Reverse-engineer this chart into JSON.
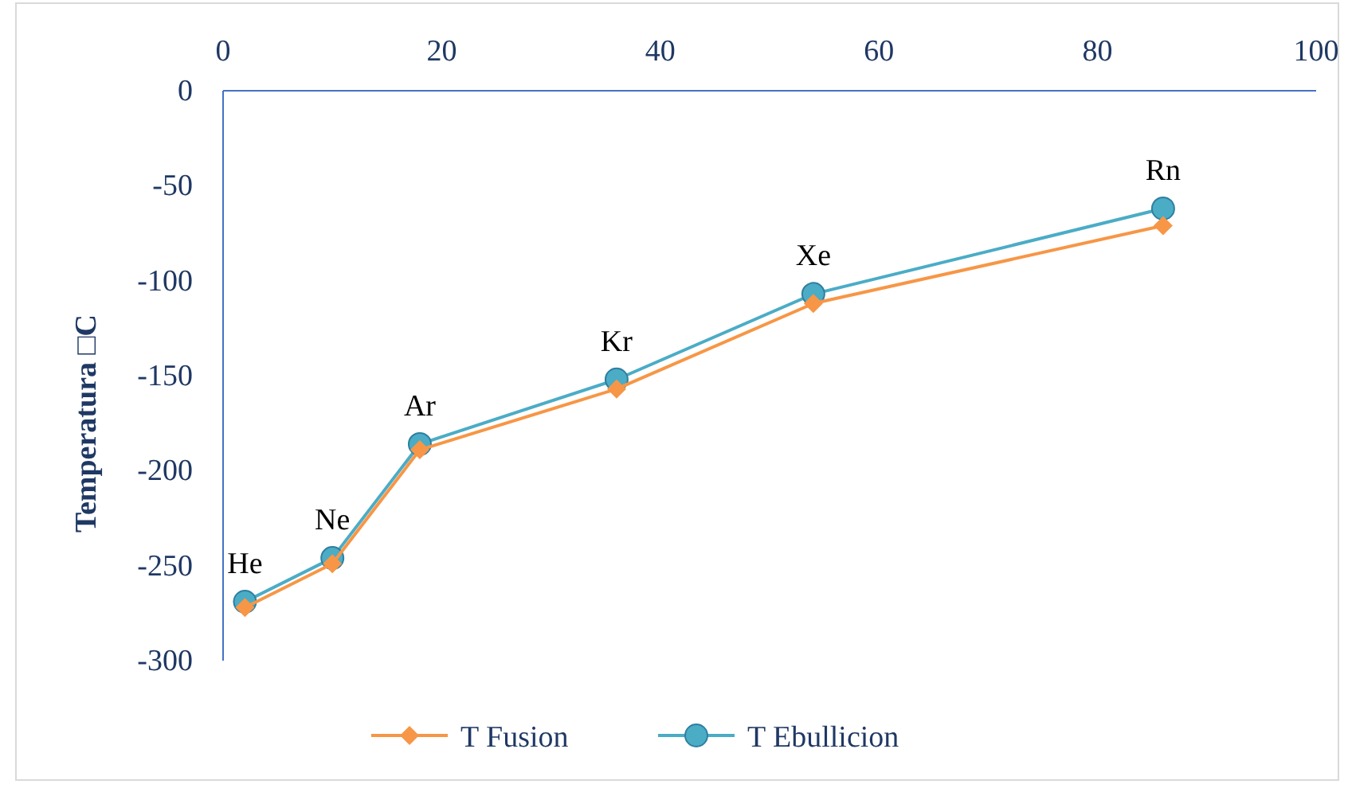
{
  "chart_data": {
    "type": "line",
    "ylabel": "Temperatura □C",
    "x": [
      2,
      10,
      18,
      36,
      54,
      86
    ],
    "series": [
      {
        "name": "T Fusion",
        "color": "#f79646",
        "marker": "diamond",
        "values": [
          -272,
          -249,
          -189,
          -157,
          -112,
          -71
        ]
      },
      {
        "name": "T Ebullicion",
        "color": "#4bacc6",
        "marker": "circle",
        "values": [
          -269,
          -246,
          -186,
          -152,
          -107,
          -62
        ]
      }
    ],
    "xlim": [
      0,
      100
    ],
    "xticks": [
      0,
      20,
      40,
      60,
      80,
      100
    ],
    "ylim": [
      -300,
      0
    ],
    "yticks": [
      0,
      -50,
      -100,
      -150,
      -200,
      -250,
      -300
    ],
    "annotations": [
      {
        "text": "He",
        "x": 2,
        "y": -269
      },
      {
        "text": "Ne",
        "x": 10,
        "y": -246
      },
      {
        "text": "Ar",
        "x": 18,
        "y": -186
      },
      {
        "text": "Kr",
        "x": 36,
        "y": -152
      },
      {
        "text": "Xe",
        "x": 54,
        "y": -107
      },
      {
        "text": "Rn",
        "x": 86,
        "y": -62
      }
    ],
    "grid": false,
    "legend": "bottom"
  }
}
